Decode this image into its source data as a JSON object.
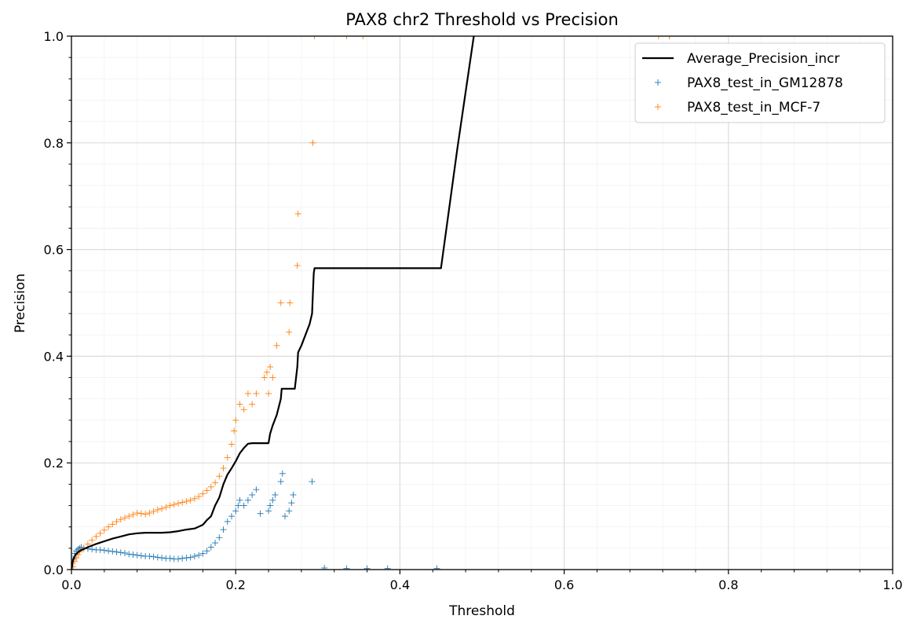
{
  "chart_data": {
    "type": "scatter",
    "title": "PAX8 chr2 Threshold vs Precision",
    "xlabel": "Threshold",
    "ylabel": "Precision",
    "xlim": [
      0.0,
      1.0
    ],
    "ylim": [
      0.0,
      1.0
    ],
    "xticks": [
      "0.0",
      "0.2",
      "0.4",
      "0.6",
      "0.8",
      "1.0"
    ],
    "yticks": [
      "0.0",
      "0.2",
      "0.4",
      "0.6",
      "0.8",
      "1.0"
    ],
    "grid": true,
    "legend_position": "top-right",
    "colors": {
      "line": "#000000",
      "gm12878": "#1f77b4",
      "mcf7": "#ff7f0e",
      "grid_major": "#dcdcdc",
      "grid_minor": "#f1f1f1"
    },
    "series": [
      {
        "name": "Average_Precision_incr",
        "kind": "line",
        "points": [
          [
            0.0,
            0.0
          ],
          [
            0.002,
            0.018
          ],
          [
            0.005,
            0.028
          ],
          [
            0.01,
            0.035
          ],
          [
            0.02,
            0.042
          ],
          [
            0.03,
            0.048
          ],
          [
            0.04,
            0.053
          ],
          [
            0.05,
            0.058
          ],
          [
            0.06,
            0.062
          ],
          [
            0.07,
            0.066
          ],
          [
            0.08,
            0.068
          ],
          [
            0.09,
            0.069
          ],
          [
            0.1,
            0.069
          ],
          [
            0.11,
            0.069
          ],
          [
            0.12,
            0.07
          ],
          [
            0.13,
            0.072
          ],
          [
            0.14,
            0.075
          ],
          [
            0.15,
            0.077
          ],
          [
            0.16,
            0.084
          ],
          [
            0.165,
            0.093
          ],
          [
            0.17,
            0.1
          ],
          [
            0.175,
            0.12
          ],
          [
            0.18,
            0.135
          ],
          [
            0.185,
            0.16
          ],
          [
            0.19,
            0.178
          ],
          [
            0.195,
            0.19
          ],
          [
            0.2,
            0.203
          ],
          [
            0.205,
            0.218
          ],
          [
            0.21,
            0.228
          ],
          [
            0.215,
            0.236
          ],
          [
            0.22,
            0.237
          ],
          [
            0.23,
            0.237
          ],
          [
            0.24,
            0.237
          ],
          [
            0.242,
            0.255
          ],
          [
            0.245,
            0.27
          ],
          [
            0.25,
            0.29
          ],
          [
            0.255,
            0.32
          ],
          [
            0.256,
            0.339
          ],
          [
            0.262,
            0.339
          ],
          [
            0.272,
            0.339
          ],
          [
            0.275,
            0.38
          ],
          [
            0.276,
            0.407
          ],
          [
            0.28,
            0.42
          ],
          [
            0.285,
            0.44
          ],
          [
            0.29,
            0.46
          ],
          [
            0.293,
            0.48
          ],
          [
            0.295,
            0.555
          ],
          [
            0.296,
            0.565
          ],
          [
            0.35,
            0.565
          ],
          [
            0.4,
            0.565
          ],
          [
            0.45,
            0.565
          ],
          [
            0.47,
            0.79
          ],
          [
            0.49,
            1.0
          ],
          [
            0.492,
            1.02
          ]
        ]
      },
      {
        "name": "PAX8_test_in_GM12878",
        "kind": "scatter",
        "points": [
          [
            0.002,
            0.02
          ],
          [
            0.004,
            0.03
          ],
          [
            0.006,
            0.035
          ],
          [
            0.008,
            0.038
          ],
          [
            0.01,
            0.04
          ],
          [
            0.012,
            0.042
          ],
          [
            0.015,
            0.04
          ],
          [
            0.02,
            0.039
          ],
          [
            0.025,
            0.038
          ],
          [
            0.03,
            0.037
          ],
          [
            0.035,
            0.037
          ],
          [
            0.04,
            0.036
          ],
          [
            0.045,
            0.035
          ],
          [
            0.05,
            0.034
          ],
          [
            0.055,
            0.033
          ],
          [
            0.06,
            0.032
          ],
          [
            0.065,
            0.031
          ],
          [
            0.07,
            0.029
          ],
          [
            0.075,
            0.028
          ],
          [
            0.08,
            0.027
          ],
          [
            0.085,
            0.026
          ],
          [
            0.09,
            0.025
          ],
          [
            0.095,
            0.025
          ],
          [
            0.1,
            0.024
          ],
          [
            0.105,
            0.023
          ],
          [
            0.11,
            0.022
          ],
          [
            0.115,
            0.021
          ],
          [
            0.12,
            0.021
          ],
          [
            0.125,
            0.02
          ],
          [
            0.13,
            0.02
          ],
          [
            0.135,
            0.021
          ],
          [
            0.14,
            0.022
          ],
          [
            0.145,
            0.023
          ],
          [
            0.15,
            0.025
          ],
          [
            0.155,
            0.027
          ],
          [
            0.16,
            0.03
          ],
          [
            0.165,
            0.035
          ],
          [
            0.17,
            0.042
          ],
          [
            0.175,
            0.05
          ],
          [
            0.18,
            0.06
          ],
          [
            0.185,
            0.075
          ],
          [
            0.19,
            0.09
          ],
          [
            0.195,
            0.1
          ],
          [
            0.2,
            0.11
          ],
          [
            0.203,
            0.12
          ],
          [
            0.205,
            0.13
          ],
          [
            0.21,
            0.12
          ],
          [
            0.215,
            0.13
          ],
          [
            0.22,
            0.14
          ],
          [
            0.225,
            0.15
          ],
          [
            0.23,
            0.105
          ],
          [
            0.24,
            0.11
          ],
          [
            0.242,
            0.12
          ],
          [
            0.245,
            0.13
          ],
          [
            0.248,
            0.14
          ],
          [
            0.255,
            0.165
          ],
          [
            0.257,
            0.18
          ],
          [
            0.26,
            0.1
          ],
          [
            0.265,
            0.11
          ],
          [
            0.268,
            0.125
          ],
          [
            0.27,
            0.14
          ],
          [
            0.293,
            0.165
          ],
          [
            0.308,
            0.003
          ],
          [
            0.335,
            0.002
          ],
          [
            0.36,
            0.002
          ],
          [
            0.385,
            0.002
          ],
          [
            0.445,
            0.002
          ]
        ]
      },
      {
        "name": "PAX8_test_in_MCF-7",
        "kind": "scatter",
        "points": [
          [
            0.002,
            0.005
          ],
          [
            0.004,
            0.015
          ],
          [
            0.006,
            0.022
          ],
          [
            0.008,
            0.028
          ],
          [
            0.01,
            0.033
          ],
          [
            0.015,
            0.04
          ],
          [
            0.02,
            0.048
          ],
          [
            0.025,
            0.055
          ],
          [
            0.03,
            0.062
          ],
          [
            0.035,
            0.068
          ],
          [
            0.04,
            0.074
          ],
          [
            0.045,
            0.08
          ],
          [
            0.05,
            0.085
          ],
          [
            0.055,
            0.09
          ],
          [
            0.06,
            0.094
          ],
          [
            0.065,
            0.097
          ],
          [
            0.07,
            0.1
          ],
          [
            0.075,
            0.103
          ],
          [
            0.08,
            0.106
          ],
          [
            0.085,
            0.105
          ],
          [
            0.09,
            0.104
          ],
          [
            0.095,
            0.106
          ],
          [
            0.1,
            0.109
          ],
          [
            0.105,
            0.112
          ],
          [
            0.11,
            0.114
          ],
          [
            0.115,
            0.117
          ],
          [
            0.12,
            0.12
          ],
          [
            0.125,
            0.122
          ],
          [
            0.13,
            0.124
          ],
          [
            0.135,
            0.126
          ],
          [
            0.14,
            0.128
          ],
          [
            0.145,
            0.13
          ],
          [
            0.15,
            0.133
          ],
          [
            0.155,
            0.137
          ],
          [
            0.16,
            0.142
          ],
          [
            0.165,
            0.148
          ],
          [
            0.17,
            0.155
          ],
          [
            0.175,
            0.163
          ],
          [
            0.18,
            0.175
          ],
          [
            0.185,
            0.19
          ],
          [
            0.19,
            0.21
          ],
          [
            0.195,
            0.235
          ],
          [
            0.198,
            0.26
          ],
          [
            0.2,
            0.28
          ],
          [
            0.205,
            0.31
          ],
          [
            0.21,
            0.3
          ],
          [
            0.215,
            0.33
          ],
          [
            0.22,
            0.31
          ],
          [
            0.225,
            0.33
          ],
          [
            0.235,
            0.36
          ],
          [
            0.238,
            0.37
          ],
          [
            0.24,
            0.33
          ],
          [
            0.242,
            0.38
          ],
          [
            0.245,
            0.36
          ],
          [
            0.25,
            0.42
          ],
          [
            0.255,
            0.5
          ],
          [
            0.265,
            0.445
          ],
          [
            0.266,
            0.5
          ],
          [
            0.275,
            0.57
          ],
          [
            0.276,
            0.667
          ],
          [
            0.294,
            0.8
          ],
          [
            0.296,
            1.0
          ],
          [
            0.335,
            1.0
          ],
          [
            0.355,
            1.0
          ],
          [
            0.715,
            1.0
          ],
          [
            0.728,
            1.0
          ]
        ]
      }
    ]
  }
}
